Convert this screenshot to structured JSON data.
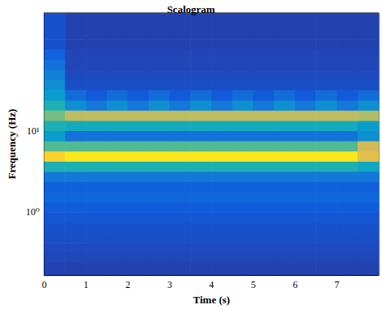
{
  "chart_data": {
    "type": "heatmap",
    "title": "Scalogram",
    "x_label": "Time (s)",
    "y_label": "Frequency (Hz)",
    "log": "y",
    "xlim": [
      0,
      8
    ],
    "xticks": [
      0,
      1,
      2,
      3,
      4,
      5,
      6,
      7
    ],
    "ylim": [
      0.17,
      280
    ],
    "yticks": [
      {
        "value": 1,
        "label": "10⁰"
      },
      {
        "value": 10,
        "label": "10¹"
      }
    ],
    "color_range": [
      0,
      1
    ],
    "time_edges": [
      0,
      0.5,
      1,
      1.5,
      2,
      2.5,
      3,
      3.5,
      4,
      4.5,
      5,
      5.5,
      6,
      6.5,
      7,
      7.5,
      8
    ],
    "frequency_edges": [
      0.17,
      0.24,
      0.32,
      0.42,
      0.56,
      0.75,
      1.0,
      1.33,
      1.78,
      2.37,
      3.16,
      4.22,
      5.62,
      7.5,
      10,
      13.3,
      17.8,
      23.7,
      31.6,
      42.2,
      56.2,
      75,
      100,
      133,
      178,
      237,
      280
    ],
    "cells": [
      [
        0.06,
        0.06,
        0.06,
        0.06,
        0.06,
        0.06,
        0.06,
        0.06,
        0.06,
        0.06,
        0.06,
        0.06,
        0.06,
        0.06,
        0.06,
        0.06
      ],
      [
        0.07,
        0.07,
        0.07,
        0.07,
        0.07,
        0.07,
        0.07,
        0.07,
        0.07,
        0.07,
        0.07,
        0.07,
        0.07,
        0.07,
        0.07,
        0.07
      ],
      [
        0.08,
        0.08,
        0.08,
        0.08,
        0.08,
        0.08,
        0.08,
        0.08,
        0.08,
        0.08,
        0.08,
        0.08,
        0.08,
        0.08,
        0.08,
        0.08
      ],
      [
        0.09,
        0.09,
        0.09,
        0.09,
        0.09,
        0.09,
        0.09,
        0.09,
        0.09,
        0.09,
        0.09,
        0.09,
        0.09,
        0.09,
        0.09,
        0.09
      ],
      [
        0.1,
        0.1,
        0.1,
        0.1,
        0.1,
        0.1,
        0.1,
        0.1,
        0.1,
        0.1,
        0.1,
        0.1,
        0.1,
        0.1,
        0.1,
        0.1
      ],
      [
        0.11,
        0.11,
        0.11,
        0.11,
        0.11,
        0.11,
        0.11,
        0.11,
        0.11,
        0.11,
        0.11,
        0.11,
        0.11,
        0.11,
        0.11,
        0.11
      ],
      [
        0.13,
        0.13,
        0.13,
        0.13,
        0.13,
        0.13,
        0.13,
        0.13,
        0.13,
        0.13,
        0.13,
        0.13,
        0.13,
        0.13,
        0.13,
        0.13
      ],
      [
        0.16,
        0.16,
        0.16,
        0.16,
        0.16,
        0.16,
        0.16,
        0.16,
        0.16,
        0.16,
        0.16,
        0.16,
        0.16,
        0.16,
        0.16,
        0.16
      ],
      [
        0.14,
        0.14,
        0.14,
        0.14,
        0.14,
        0.14,
        0.14,
        0.14,
        0.14,
        0.14,
        0.14,
        0.14,
        0.14,
        0.14,
        0.14,
        0.14
      ],
      [
        0.22,
        0.22,
        0.22,
        0.22,
        0.22,
        0.22,
        0.22,
        0.22,
        0.22,
        0.22,
        0.22,
        0.22,
        0.22,
        0.22,
        0.22,
        0.22
      ],
      [
        0.45,
        0.45,
        0.45,
        0.45,
        0.45,
        0.45,
        0.45,
        0.45,
        0.45,
        0.45,
        0.45,
        0.45,
        0.45,
        0.45,
        0.45,
        0.4
      ],
      [
        0.9,
        0.95,
        0.95,
        0.95,
        0.95,
        0.95,
        0.95,
        0.95,
        0.95,
        0.95,
        0.95,
        0.95,
        0.95,
        0.95,
        0.95,
        0.8
      ],
      [
        0.55,
        0.55,
        0.55,
        0.55,
        0.55,
        0.55,
        0.55,
        0.55,
        0.55,
        0.55,
        0.55,
        0.55,
        0.55,
        0.55,
        0.55,
        0.75
      ],
      [
        0.35,
        0.2,
        0.2,
        0.2,
        0.2,
        0.2,
        0.2,
        0.2,
        0.2,
        0.2,
        0.2,
        0.2,
        0.2,
        0.2,
        0.2,
        0.3
      ],
      [
        0.45,
        0.42,
        0.42,
        0.42,
        0.42,
        0.42,
        0.42,
        0.42,
        0.42,
        0.42,
        0.42,
        0.42,
        0.42,
        0.42,
        0.42,
        0.35
      ],
      [
        0.6,
        0.72,
        0.72,
        0.72,
        0.72,
        0.72,
        0.72,
        0.72,
        0.72,
        0.72,
        0.72,
        0.72,
        0.72,
        0.72,
        0.72,
        0.7
      ],
      [
        0.45,
        0.3,
        0.22,
        0.3,
        0.22,
        0.3,
        0.22,
        0.3,
        0.22,
        0.3,
        0.22,
        0.3,
        0.22,
        0.3,
        0.22,
        0.3
      ],
      [
        0.35,
        0.18,
        0.12,
        0.18,
        0.12,
        0.18,
        0.12,
        0.18,
        0.12,
        0.18,
        0.12,
        0.18,
        0.12,
        0.18,
        0.12,
        0.18
      ],
      [
        0.3,
        0.09,
        0.09,
        0.09,
        0.09,
        0.09,
        0.09,
        0.09,
        0.09,
        0.09,
        0.09,
        0.09,
        0.09,
        0.09,
        0.09,
        0.09
      ],
      [
        0.25,
        0.08,
        0.08,
        0.08,
        0.08,
        0.08,
        0.08,
        0.08,
        0.08,
        0.08,
        0.08,
        0.08,
        0.08,
        0.08,
        0.08,
        0.08
      ],
      [
        0.2,
        0.07,
        0.07,
        0.07,
        0.07,
        0.07,
        0.07,
        0.07,
        0.07,
        0.07,
        0.07,
        0.07,
        0.07,
        0.07,
        0.07,
        0.07
      ],
      [
        0.15,
        0.07,
        0.07,
        0.07,
        0.07,
        0.07,
        0.07,
        0.07,
        0.07,
        0.07,
        0.07,
        0.07,
        0.07,
        0.07,
        0.07,
        0.07
      ],
      [
        0.1,
        0.06,
        0.06,
        0.06,
        0.06,
        0.06,
        0.06,
        0.06,
        0.06,
        0.06,
        0.06,
        0.06,
        0.06,
        0.06,
        0.06,
        0.06
      ],
      [
        0.1,
        0.06,
        0.06,
        0.06,
        0.06,
        0.06,
        0.06,
        0.06,
        0.06,
        0.06,
        0.06,
        0.06,
        0.06,
        0.06,
        0.06,
        0.06
      ],
      [
        0.1,
        0.06,
        0.06,
        0.06,
        0.06,
        0.06,
        0.06,
        0.06,
        0.06,
        0.06,
        0.06,
        0.06,
        0.06,
        0.06,
        0.06,
        0.06
      ],
      [
        0.1,
        0.06,
        0.06,
        0.06,
        0.06,
        0.06,
        0.06,
        0.06,
        0.06,
        0.06,
        0.06,
        0.06,
        0.06,
        0.06,
        0.06,
        0.06
      ]
    ]
  }
}
